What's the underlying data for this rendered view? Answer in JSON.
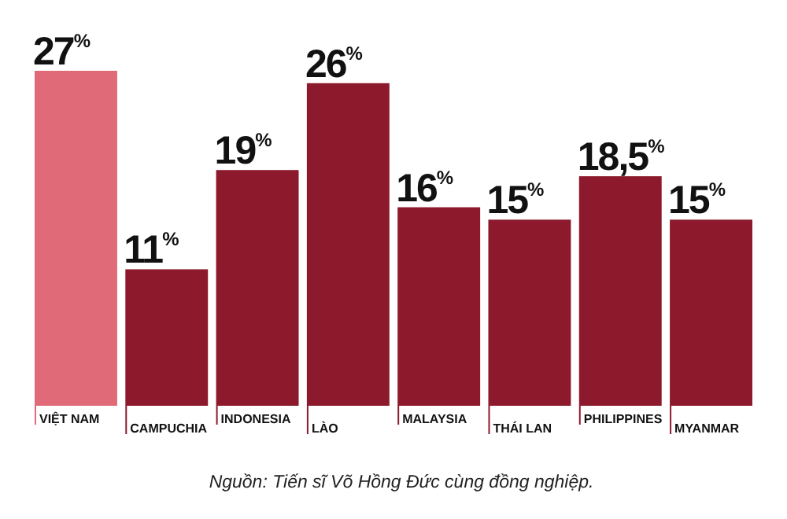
{
  "chart_data": {
    "type": "bar",
    "relative": false,
    "categories": [
      "VIỆT NAM",
      "CAMPUCHIA",
      "INDONESIA",
      "LÀO",
      "MALAYSIA",
      "THÁI LAN",
      "PHILIPPINES",
      "MYANMAR"
    ],
    "values": [
      27,
      11,
      19,
      26,
      16,
      15,
      18.5,
      15
    ],
    "value_labels": [
      "27$^{%}$",
      "11$^{%}$",
      "19$^{%}$",
      "26$^{%}$",
      "16$^{%}$",
      "15$^{%}$",
      "18,5$^{%}$",
      "15$^{%}$"
    ],
    "colors": [
      "#e06a78",
      "#8c1a2c",
      "#8c1a2c",
      "#8c1a2c",
      "#8c1a2c",
      "#8c1a2c",
      "#8c1a2c",
      "#8c1a2c"
    ],
    "annotations": [
      "Nguồn: Tiến sĩ Võ Hồng Đức cùng đồng nghiệp."
    ]
  }
}
